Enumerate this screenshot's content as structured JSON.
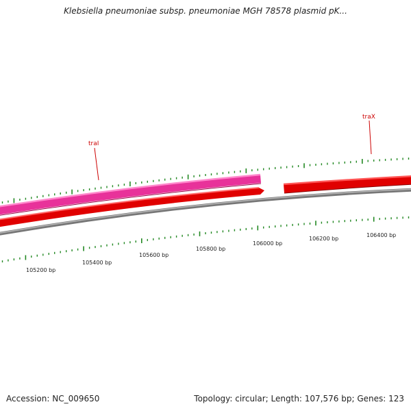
{
  "title": "Klebsiella pneumoniae subsp. pneumoniae MGH 78578 plasmid pK...",
  "footer": {
    "accession": "Accession: NC_009650",
    "summary": "Topology: circular; Length: 107,576 bp; Genes: 123"
  },
  "genes": [
    {
      "name": "traI",
      "strand": "forward",
      "color": "#ee3399"
    },
    {
      "name": "traX",
      "strand": "forward",
      "color": "#ee0000"
    },
    {
      "name": "",
      "strand": "reverse",
      "color": "#ee0000"
    }
  ],
  "position_labels": [
    "105200 bp",
    "105400 bp",
    "105600 bp",
    "105800 bp",
    "106000 bp",
    "106200 bp",
    "106400 bp"
  ],
  "colors": {
    "tick": "#228822",
    "backbone": "#888888",
    "label_line": "#cc0000"
  }
}
